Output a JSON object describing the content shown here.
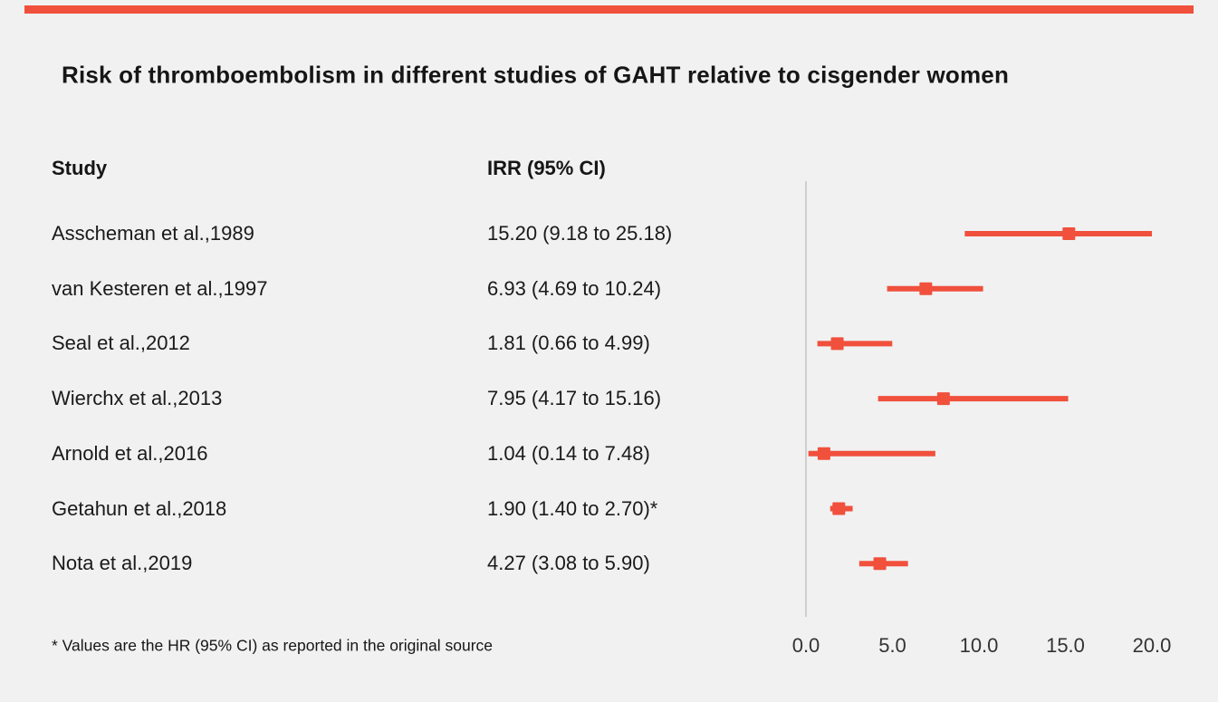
{
  "colors": {
    "accent": "#F0503C",
    "background": "#F1F1F1",
    "text": "#1A1A1A",
    "axis": "#CFCFCF",
    "tick_text": "#333333"
  },
  "header": {
    "title": "Risk of thromboembolism in different studies of GAHT relative to cisgender women"
  },
  "columns": {
    "study": "Study",
    "irr": "IRR (95% CI)"
  },
  "footnote": "* Values are the HR (95% CI) as reported in the original source",
  "chart_data": {
    "type": "forest",
    "title": "Risk of thromboembolism in different studies of GAHT relative to cisgender women",
    "xlabel": "",
    "ylabel": "",
    "xlim": [
      0,
      20
    ],
    "x_ticks": [
      0,
      5,
      10,
      15,
      20
    ],
    "x_tick_labels": [
      "0.0",
      "5.0",
      "10.0",
      "15.0",
      "20.0"
    ],
    "grid": false,
    "studies": [
      {
        "name": "Asscheman et al.,1989",
        "label": "15.20 (9.18 to 25.18)",
        "estimate": 15.2,
        "ci_lower": 9.18,
        "ci_upper": 25.18
      },
      {
        "name": "van Kesteren et al.,1997",
        "label": "6.93 (4.69 to 10.24)",
        "estimate": 6.93,
        "ci_lower": 4.69,
        "ci_upper": 10.24
      },
      {
        "name": "Seal et al.,2012",
        "label": "1.81 (0.66 to 4.99)",
        "estimate": 1.81,
        "ci_lower": 0.66,
        "ci_upper": 4.99
      },
      {
        "name": "Wierchx et al.,2013",
        "label": "7.95 (4.17 to 15.16)",
        "estimate": 7.95,
        "ci_lower": 4.17,
        "ci_upper": 15.16
      },
      {
        "name": "Arnold et al.,2016",
        "label": "1.04 (0.14 to 7.48)",
        "estimate": 1.04,
        "ci_lower": 0.14,
        "ci_upper": 7.48
      },
      {
        "name": "Getahun et al.,2018",
        "label": "1.90 (1.40 to 2.70)*",
        "estimate": 1.9,
        "ci_lower": 1.4,
        "ci_upper": 2.7
      },
      {
        "name": "Nota et al.,2019",
        "label": "4.27 (3.08 to 5.90)",
        "estimate": 4.27,
        "ci_lower": 3.08,
        "ci_upper": 5.9
      }
    ]
  }
}
